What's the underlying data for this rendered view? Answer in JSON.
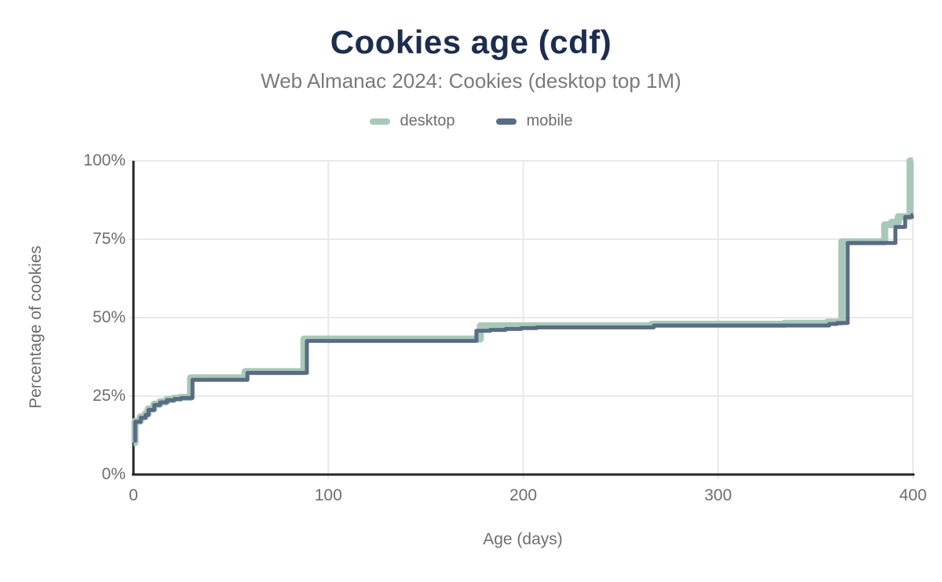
{
  "colors": {
    "title": "#1c2d4f",
    "subtitle": "#7a7a7a",
    "tick_text": "#6e6e6e",
    "axis_line": "#262626",
    "grid_line": "#e9e9e9",
    "background": "#ffffff",
    "desktop_series": "#a8c9b7",
    "mobile_series": "#5a6b85"
  },
  "chart_data": {
    "type": "line",
    "subtype": "step-cdf",
    "title": "Cookies age (cdf)",
    "subtitle": "Web Almanac 2024: Cookies (desktop top 1M)",
    "xlabel": "Age (days)",
    "ylabel": "Percentage of cookies",
    "xlim": [
      0,
      400
    ],
    "ylim": [
      0,
      100
    ],
    "grid": true,
    "legend_position": "top",
    "x_ticks": [
      {
        "v": 0,
        "label": "0"
      },
      {
        "v": 100,
        "label": "100"
      },
      {
        "v": 200,
        "label": "200"
      },
      {
        "v": 300,
        "label": "300"
      },
      {
        "v": 400,
        "label": "400"
      }
    ],
    "y_ticks": [
      {
        "v": 0,
        "label": "0%"
      },
      {
        "v": 25,
        "label": "25%"
      },
      {
        "v": 50,
        "label": "50%"
      },
      {
        "v": 75,
        "label": "75%"
      },
      {
        "v": 100,
        "label": "100%"
      }
    ],
    "series": [
      {
        "name": "desktop",
        "color": "#a8c9b7",
        "stroke_width": 9,
        "points": [
          [
            0,
            10.2
          ],
          [
            0.8,
            17
          ],
          [
            3.5,
            18.4
          ],
          [
            6,
            19.3
          ],
          [
            7.5,
            20.9
          ],
          [
            10.5,
            22.4
          ],
          [
            13.5,
            23.2
          ],
          [
            17,
            23.9
          ],
          [
            20.5,
            24.3
          ],
          [
            24,
            24.6
          ],
          [
            29.3,
            30.8
          ],
          [
            57.3,
            32.8
          ],
          [
            87.5,
            43.2
          ],
          [
            178,
            47.4
          ],
          [
            266,
            47.9
          ],
          [
            334,
            48.2
          ],
          [
            356,
            48.6
          ],
          [
            363.5,
            74.2
          ],
          [
            385.5,
            79.6
          ],
          [
            389,
            80.4
          ],
          [
            392.5,
            82.2
          ],
          [
            398.5,
            100
          ],
          [
            400,
            100
          ]
        ]
      },
      {
        "name": "mobile",
        "color": "#5a6b85",
        "stroke_width": 5,
        "points": [
          [
            0,
            10.8
          ],
          [
            0.9,
            16.8
          ],
          [
            3.7,
            18.1
          ],
          [
            6.2,
            19
          ],
          [
            7.7,
            20.6
          ],
          [
            10.7,
            22.2
          ],
          [
            13.7,
            23
          ],
          [
            17.2,
            23.7
          ],
          [
            21,
            24.1
          ],
          [
            24.5,
            24.4
          ],
          [
            30.3,
            30.2
          ],
          [
            58.5,
            32.4
          ],
          [
            89,
            42.6
          ],
          [
            176,
            45.8
          ],
          [
            183,
            46.1
          ],
          [
            191,
            46.4
          ],
          [
            199,
            46.7
          ],
          [
            207,
            46.9
          ],
          [
            267,
            47.5
          ],
          [
            357,
            48
          ],
          [
            361,
            48.3
          ],
          [
            366.5,
            73.8
          ],
          [
            391,
            78.9
          ],
          [
            396,
            82.1
          ],
          [
            399.5,
            82.7
          ],
          [
            400,
            82.7
          ]
        ]
      }
    ]
  }
}
